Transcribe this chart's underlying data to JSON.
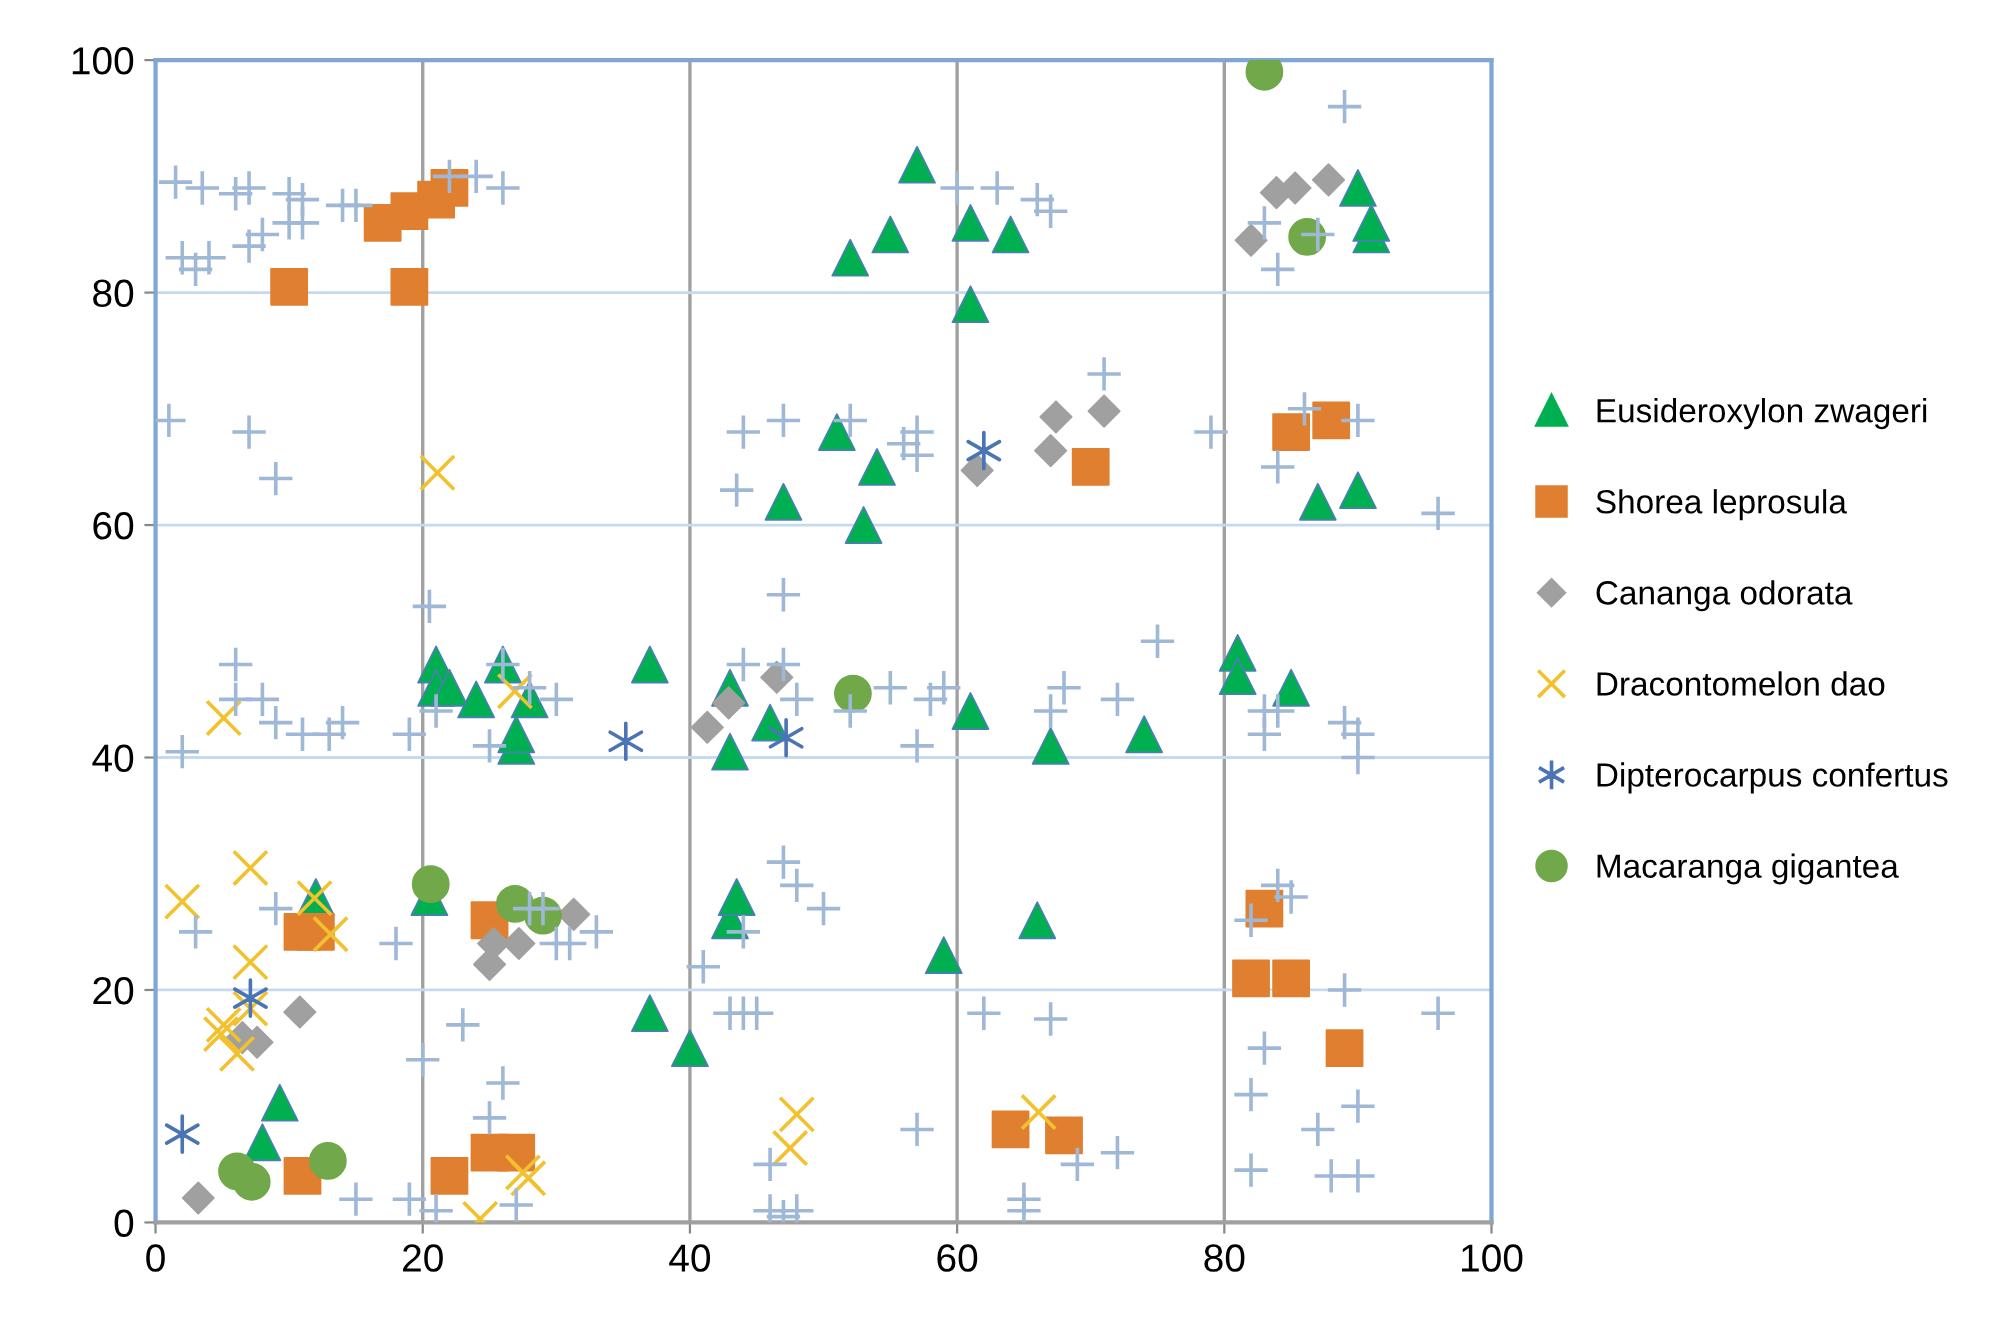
{
  "chart_data": {
    "type": "scatter",
    "xlim": [
      0,
      100
    ],
    "ylim": [
      0,
      100
    ],
    "xticks": [
      0,
      20,
      40,
      60,
      80,
      100
    ],
    "yticks": [
      0,
      20,
      40,
      60,
      80,
      100
    ],
    "grid": true,
    "legend": "right",
    "series": [
      {
        "name": "Eusideroxylon zwageri",
        "color": "#00b050",
        "marker": "triangle",
        "x": [
          57,
          52,
          55,
          61,
          64,
          61,
          90,
          91,
          91,
          51,
          54,
          47,
          53,
          87,
          90,
          21,
          21,
          22,
          24,
          26,
          27,
          27,
          28,
          37,
          43,
          43,
          46,
          61,
          67,
          74,
          81,
          81,
          85,
          12,
          20.5,
          43,
          43.5,
          66,
          59,
          37,
          40,
          9.3,
          8
        ],
        "values": [
          91,
          83,
          85,
          86,
          85,
          79,
          89,
          85,
          86,
          68,
          65,
          62,
          60,
          62,
          63,
          48,
          46,
          46,
          45,
          48,
          41,
          42,
          45,
          48,
          46,
          40.5,
          43,
          44,
          41,
          42,
          49,
          47,
          46,
          28,
          28,
          26,
          28,
          26,
          23,
          18,
          15,
          10.3,
          6.9
        ]
      },
      {
        "name": "Shorea leprosula",
        "color": "#e07f2f",
        "marker": "square",
        "x": [
          10,
          17,
          19,
          19,
          21,
          22,
          70,
          85,
          88,
          11,
          12,
          25,
          82,
          83,
          85,
          89,
          64,
          68,
          11,
          22,
          25,
          27
        ],
        "values": [
          80.5,
          86,
          87,
          80.5,
          88,
          89,
          65,
          68,
          69,
          25,
          25,
          26,
          21,
          27,
          21,
          15,
          8,
          7.5,
          4,
          4,
          6,
          6
        ]
      },
      {
        "name": "Cananga odorata",
        "color": "#a0a0a0",
        "marker": "diamond",
        "x": [
          67.4,
          71,
          67,
          61.5,
          83.9,
          85.3,
          87.8,
          82,
          41.3,
          42.9,
          46.5,
          31.3,
          25.3,
          27.2,
          25,
          10.8,
          6.5,
          7.6,
          3.2
        ],
        "values": [
          69.3,
          69.8,
          66.4,
          64.7,
          88.6,
          89,
          89.7,
          84.5,
          42.6,
          44.7,
          46.9,
          26.5,
          24,
          24,
          22.2,
          18.1,
          15.9,
          15.5,
          2.1
        ]
      },
      {
        "name": "Dracontomelon dao",
        "color": "#f2c12e",
        "marker": "x",
        "x": [
          21.1,
          5.1,
          26.9,
          2,
          7.1,
          11.9,
          13.1,
          7.1,
          5.1,
          4.9,
          6.1,
          7.1,
          27.5,
          27.9,
          24.3,
          48,
          47.5,
          66.1
        ],
        "values": [
          64.5,
          43.4,
          45.7,
          27.6,
          30.5,
          27.9,
          24.8,
          22.4,
          17,
          16.2,
          14.5,
          18.4,
          4.3,
          3.8,
          0.3,
          9.3,
          6.4,
          9.5
        ]
      },
      {
        "name": "Dipterocarpus confertus",
        "color": "#4a74b5",
        "marker": "cross",
        "x": [
          7.1,
          2,
          35.2,
          47.2,
          62
        ],
        "values": [
          19.3,
          7.6,
          41.4,
          41.7,
          66.4
        ]
      },
      {
        "name": "Macaranga gigantea",
        "color": "#70a84a",
        "marker": "circle",
        "x": [
          83,
          86.2,
          52.2,
          20.6,
          26.9,
          29,
          6.1,
          7.2,
          12.9
        ],
        "values": [
          99,
          84.8,
          45.5,
          29.1,
          27.4,
          26.4,
          4.4,
          3.5,
          5.3
        ]
      },
      {
        "color": "#9fb8d6",
        "marker": "plus",
        "x": [
          1.5,
          3.5,
          6,
          7,
          10,
          11,
          14,
          15,
          22,
          24,
          26,
          2,
          3,
          4,
          7,
          8,
          10,
          11,
          1,
          7,
          9,
          20.5,
          21,
          44,
          43.5,
          47,
          52,
          56,
          57,
          57,
          60,
          63,
          66,
          67,
          71,
          79,
          84,
          86,
          90,
          96,
          89,
          84,
          87,
          83,
          75,
          72,
          68,
          67,
          58,
          59,
          57,
          55,
          52,
          48,
          47,
          47,
          44,
          30,
          28,
          6,
          6,
          8,
          9,
          11,
          13,
          14,
          2,
          19,
          25,
          26,
          47,
          48,
          50,
          44,
          41,
          43,
          44,
          45,
          33,
          31,
          30,
          29,
          28,
          18,
          20,
          23,
          26,
          25,
          27,
          21,
          19,
          15,
          9,
          3,
          46,
          46,
          48,
          47,
          57,
          62,
          67,
          65,
          65,
          69,
          72,
          82,
          84,
          85,
          82,
          82,
          83,
          87,
          88,
          90,
          90,
          89,
          96,
          90,
          90,
          89,
          83,
          83,
          84
        ],
        "values": [
          89.5,
          89,
          88.5,
          89,
          88.5,
          88,
          87.5,
          87.5,
          90,
          90,
          89,
          83,
          82,
          83,
          84,
          85,
          86,
          86,
          69,
          68,
          64,
          53,
          44,
          68,
          63,
          69,
          69,
          67,
          68,
          66,
          89,
          89,
          88,
          87,
          73,
          68,
          65,
          70,
          69,
          61,
          96,
          82,
          85,
          86,
          50,
          45,
          46,
          44,
          45,
          46,
          41,
          46,
          44,
          45,
          54,
          48,
          48,
          45,
          46,
          48,
          45,
          45,
          43,
          42,
          42,
          43,
          40.5,
          42,
          41,
          48,
          31,
          29,
          27,
          25,
          22,
          18,
          18,
          18,
          25,
          24,
          24,
          27,
          27,
          24,
          14,
          17,
          12,
          9,
          1.5,
          1,
          2,
          2,
          27,
          25,
          5,
          1,
          1,
          0.5,
          8,
          18,
          17.5,
          2,
          1,
          5,
          6,
          26,
          29,
          28,
          4.5,
          11,
          15,
          8,
          4,
          4,
          10,
          20,
          18,
          40,
          42,
          43,
          42,
          44,
          44
        ]
      }
    ]
  }
}
